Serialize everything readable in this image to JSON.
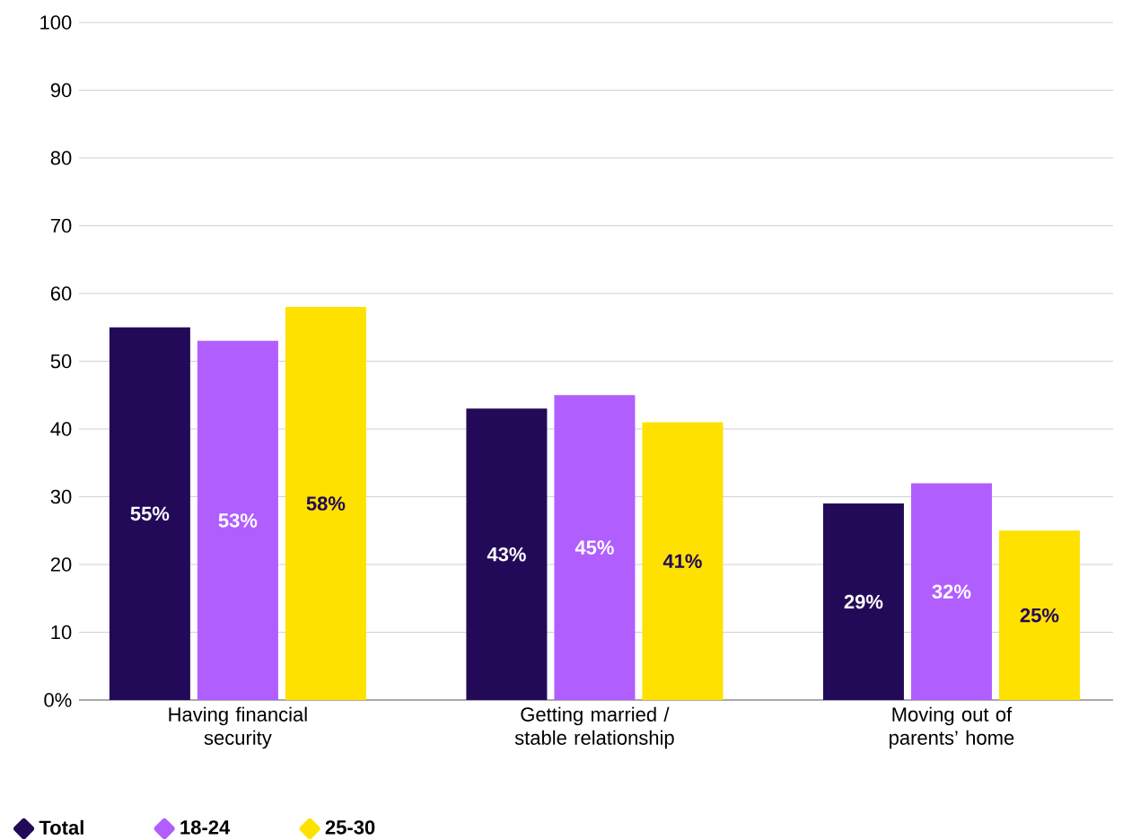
{
  "chart_data": {
    "type": "bar",
    "categories": [
      "Having financial security",
      "Getting married / stable relationship",
      "Moving out of parents’ home"
    ],
    "series": [
      {
        "name": "Total",
        "color": "#230a59",
        "values": [
          55,
          43,
          29
        ],
        "value_labels": [
          "55%",
          "43%",
          "29%"
        ]
      },
      {
        "name": "18-24",
        "color": "#b15eff",
        "values": [
          53,
          45,
          32
        ],
        "value_labels": [
          "53%",
          "45%",
          "32%"
        ]
      },
      {
        "name": "25-30",
        "color": "#ffe100",
        "values": [
          58,
          41,
          25
        ],
        "value_labels": [
          "58%",
          "41%",
          "25%"
        ]
      }
    ],
    "ylim": [
      0,
      100
    ],
    "yticks": [
      {
        "value": 0,
        "label": "0%"
      },
      10,
      20,
      30,
      40,
      50,
      60,
      70,
      80,
      90,
      100
    ],
    "grid": "y",
    "legend": "bottom left",
    "marker": "diamond"
  }
}
